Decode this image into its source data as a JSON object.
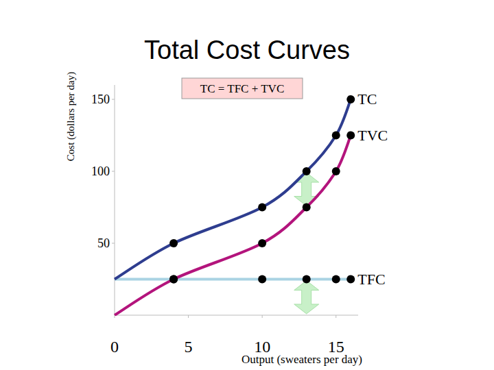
{
  "chart_data": {
    "type": "line",
    "title": "Total Cost Curves",
    "x_label": "Output (sweaters per day)",
    "y_label": "Cost (dollars per day)",
    "annotation": "TC = TFC + TVC",
    "x": [
      0,
      4,
      10,
      13,
      15,
      16
    ],
    "series": [
      {
        "name": "TC",
        "color": "#2e3d8f",
        "marker": "circle",
        "values": [
          25,
          50,
          75,
          100,
          125,
          150
        ]
      },
      {
        "name": "TVC",
        "color": "#b3147c",
        "marker": "circle",
        "values": [
          0,
          25,
          50,
          75,
          100,
          125
        ]
      },
      {
        "name": "TFC",
        "color": "#a9d3e3",
        "marker": "circle",
        "values": [
          25,
          25,
          25,
          25,
          25,
          25
        ]
      }
    ],
    "xlim": [
      0,
      16.5
    ],
    "ylim": [
      0,
      160
    ],
    "xticks": [
      0,
      5,
      10,
      15
    ],
    "yticks": [
      50,
      100,
      150
    ],
    "grid": false
  }
}
